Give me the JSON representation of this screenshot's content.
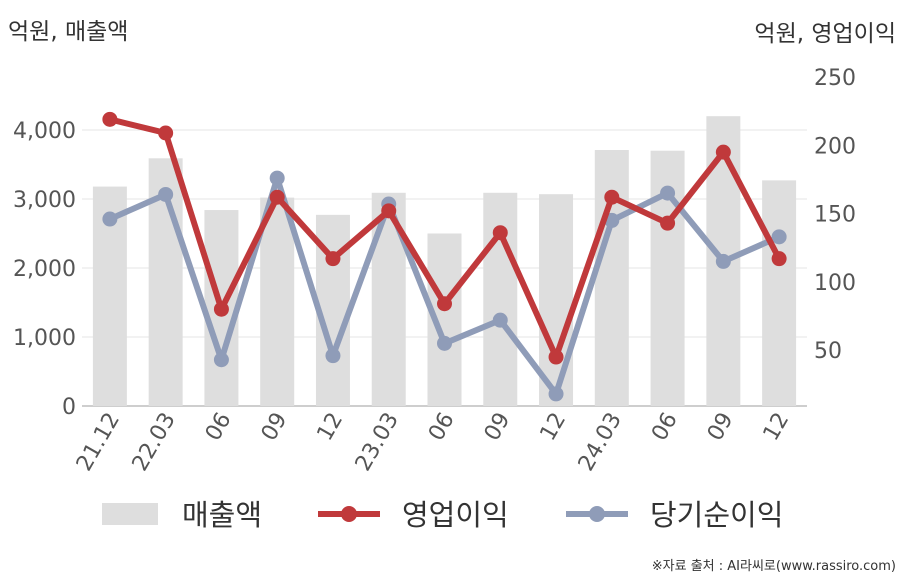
{
  "units": {
    "left": "억원, 매출액",
    "right": "억원, 영업이익"
  },
  "source": "※자료 출처 : AI라씨로(www.rassiro.com)",
  "colors": {
    "bars": "#dedede",
    "operating_profit": "#c0393b",
    "net_income": "#8f9cb8",
    "grid": "#e6e6e6",
    "axis_text": "#555555"
  },
  "chart_data": {
    "type": "bar",
    "categories": [
      "21.12",
      "22.03",
      "06",
      "09",
      "12",
      "23.03",
      "06",
      "09",
      "12",
      "24.03",
      "06",
      "09",
      "12"
    ],
    "y_left": {
      "ticks": [
        "0",
        "1,000",
        "2,000",
        "3,000",
        "4,000"
      ],
      "lim": [
        0,
        4000
      ]
    },
    "y_right": {
      "ticks": [
        "50",
        "100",
        "150",
        "200",
        "250"
      ],
      "lim": [
        15,
        250
      ]
    },
    "series": [
      {
        "name": "매출액",
        "kind": "bar",
        "axis": "left",
        "values": [
          3180,
          3590,
          2840,
          3020,
          2770,
          3090,
          2500,
          3090,
          3070,
          3710,
          3700,
          4200,
          3270
        ]
      },
      {
        "name": "영업이익",
        "kind": "line",
        "axis": "right",
        "values": [
          219,
          209,
          80,
          162,
          117,
          152,
          84,
          136,
          45,
          162,
          143,
          195,
          117
        ]
      },
      {
        "name": "당기순이익",
        "kind": "line",
        "axis": "right",
        "values": [
          146,
          164,
          43,
          176,
          46,
          157,
          55,
          72,
          18,
          145,
          165,
          115,
          133
        ]
      }
    ]
  }
}
